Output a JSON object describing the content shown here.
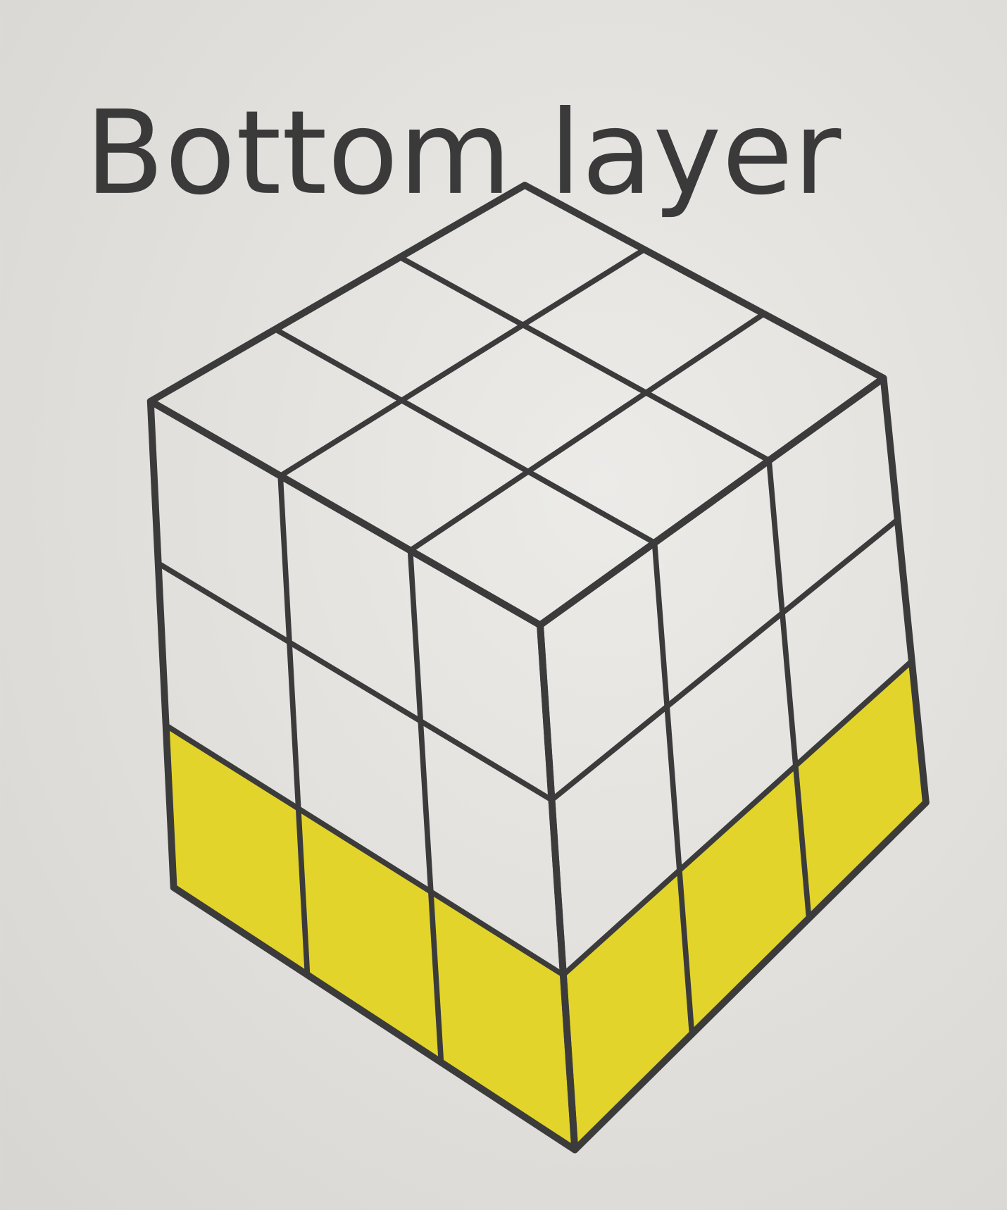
{
  "title": "Bottom layer"
}
